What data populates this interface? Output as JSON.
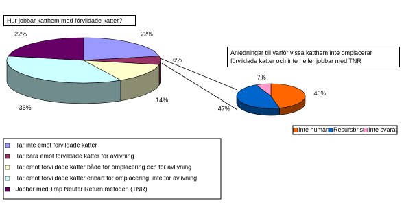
{
  "chart_data": [
    {
      "type": "pie",
      "title": "Hur jobbar katthem med förvildade katter?",
      "categories": [
        "Tar inte emot förvildade katter",
        "Tar bara emot förvildade katter för avlivning",
        "Tar emot förvildade katter både för omplacering och för avlivning",
        "Tar emot förvildade katter enbart för omplacering, inte för avlivning",
        "Jobbar med Trap Neuter Return metoden (TNR)"
      ],
      "values": [
        22,
        6,
        14,
        36,
        22
      ],
      "value_labels": [
        "22%",
        "6%",
        "14%",
        "36%",
        "22%"
      ],
      "colors": [
        "#9999ff",
        "#993366",
        "#ffffcc",
        "#ccffff",
        "#660066"
      ],
      "legend": "bottom"
    },
    {
      "type": "pie",
      "title": "Anledningar till varför vissa katthem inte omplacerar förvildade katter och inte heller jobbar med TNR",
      "categories": [
        "Inte human",
        "Resursbrist",
        "Inte svarat"
      ],
      "values": [
        46,
        47,
        7
      ],
      "value_labels": [
        "46%",
        "47%",
        "7%"
      ],
      "colors": [
        "#ff6600",
        "#0066cc",
        "#ff99cc"
      ],
      "legend": "bottom"
    }
  ]
}
